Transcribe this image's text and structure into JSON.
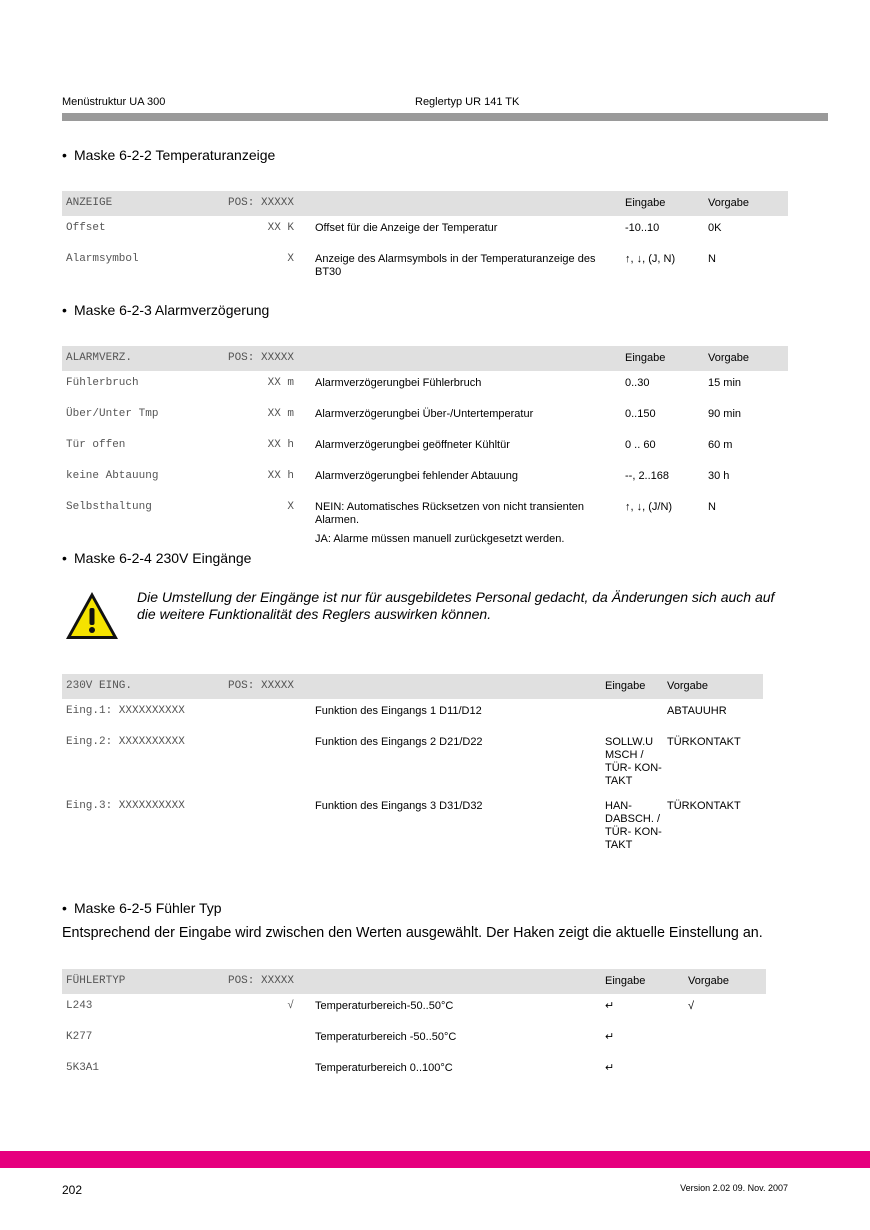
{
  "header": {
    "left": "Menüstruktur UA 300",
    "center": "Reglertyp UR 141 TK"
  },
  "colors": {
    "accent_bar": "#e6007e",
    "header_bar": "#9a9a9a",
    "table_header_bg": "#e0e0e0"
  },
  "sections": [
    {
      "heading": "Maske 6-2-2 Temperaturanzeige",
      "table": {
        "header": [
          "ANZEIGE",
          "POS: XXXXX",
          "",
          "Eingabe",
          "Vorgabe"
        ],
        "rows": [
          [
            "Offset",
            "XX K",
            [
              "Offset für die Anzeige der Temperatur"
            ],
            "-10..10",
            "0K"
          ],
          [
            "Alarmsymbol",
            "X",
            [
              "Anzeige des Alarmsymbols in der Temperaturanzeige des BT30"
            ],
            "↑, ↓, (J, N)",
            "N"
          ]
        ]
      }
    },
    {
      "heading": "Maske 6-2-3 Alarmverzögerung",
      "table": {
        "header": [
          "ALARMVERZ.",
          "POS: XXXXX",
          "",
          "Eingabe",
          "Vorgabe"
        ],
        "rows": [
          [
            "Fühlerbruch",
            "XX m",
            [
              "Alarmverzögerungbei Fühlerbruch"
            ],
            "0..30",
            "15 min"
          ],
          [
            "Über/Unter Tmp",
            "XX m",
            [
              "Alarmverzögerungbei Über-/Untertemperatur"
            ],
            "0..150",
            "90 min"
          ],
          [
            "Tür offen",
            "XX h",
            [
              "Alarmverzögerungbei geöffneter Kühltür"
            ],
            "0 .. 60",
            "60 m"
          ],
          [
            "keine Abtauung",
            "XX h",
            [
              "Alarmverzögerungbei fehlender Abtauung"
            ],
            "--, 2..168",
            "30 h"
          ],
          [
            "Selbsthaltung",
            "X",
            [
              "NEIN: Automatisches Rücksetzen von nicht transienten Alarmen.",
              "JA: Alarme müssen manuell zurückgesetzt werden."
            ],
            "↑, ↓, (J/N)",
            "N"
          ]
        ]
      }
    },
    {
      "heading": "Maske 6-2-4 230V Eingänge",
      "warning": {
        "icon": "warning-triangle-icon",
        "text": "Die Umstellung der Eingänge ist nur für ausgebildetes Personal gedacht, da Änderungen sich auch auf die weitere Funktionalität des Reglers auswirken können."
      },
      "table": {
        "header": [
          "230V EING.",
          "POS: XXXXX",
          "",
          "Eingabe",
          "Vorgabe"
        ],
        "rows": [
          [
            "Eing.1: XXXXXXXXXX",
            "",
            [
              "Funktion des Eingangs 1 D11/D12"
            ],
            "",
            "ABTAUUHR"
          ],
          [
            "Eing.2: XXXXXXXXXX",
            "",
            [
              "Funktion des Eingangs 2 D21/D22"
            ],
            "SOLLW.U MSCH / TÜR- KON- TAKT",
            "TÜRKONTAKT"
          ],
          [
            "Eing.3: XXXXXXXXXX",
            "",
            [
              "Funktion des Eingangs 3 D31/D32"
            ],
            "HAN- DABSCH. / TÜR- KON- TAKT",
            "TÜRKONTAKT"
          ]
        ]
      }
    },
    {
      "heading": "Maske 6-2-5 Fühler Typ",
      "paragraph": "Entsprechend der Eingabe wird zwischen den Werten ausgewählt. Der Haken zeigt die aktuelle Einstellung an.",
      "table": {
        "header": [
          "FÜHLERTYP",
          "POS: XXXXX",
          "",
          "Eingabe",
          "Vorgabe"
        ],
        "rows": [
          [
            "L243",
            "√",
            [
              "Temperaturbereich-50..50°C"
            ],
            "↵",
            "√"
          ],
          [
            "K277",
            "",
            [
              "Temperaturbereich -50..50°C"
            ],
            "↵",
            ""
          ],
          [
            "5K3A1",
            "",
            [
              "Temperaturbereich 0..100°C"
            ],
            "↵",
            ""
          ]
        ]
      }
    }
  ],
  "footer": {
    "page_number": "202",
    "version": "Version 2.02   09. Nov. 2007"
  }
}
